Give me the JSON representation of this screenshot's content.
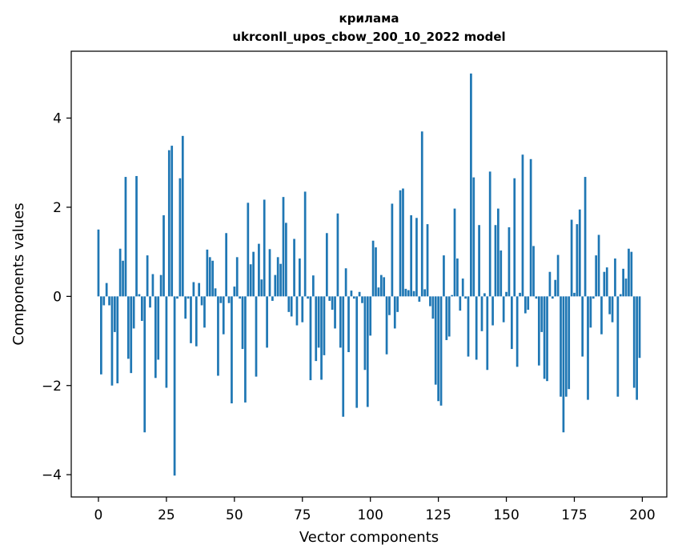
{
  "chart_data": {
    "type": "bar",
    "title": "крилама",
    "subtitle": "ukrconll_upos_cbow_200_10_2022 model",
    "xlabel": "Vector components",
    "ylabel": "Components values",
    "xlim": [
      -10,
      209
    ],
    "ylim": [
      -4.5,
      5.5
    ],
    "xticks": [
      0,
      25,
      50,
      75,
      100,
      125,
      150,
      175,
      200
    ],
    "yticks": [
      -4,
      -2,
      0,
      2,
      4
    ],
    "xtick_labels": [
      "0",
      "25",
      "50",
      "75",
      "100",
      "125",
      "150",
      "175",
      "200"
    ],
    "ytick_labels": [
      "−4",
      "−2",
      "0",
      "2",
      "4"
    ],
    "grid": false,
    "color": "#1f77b4",
    "series": [
      {
        "values": [
          1.5,
          -1.75,
          -0.2,
          0.3,
          -0.2,
          -2.0,
          -0.8,
          -1.95,
          1.07,
          0.8,
          2.68,
          -1.4,
          -1.72,
          -0.72,
          2.7,
          0.05,
          -0.55,
          -3.05,
          0.92,
          -0.25,
          0.5,
          -1.83,
          -1.42,
          0.48,
          1.82,
          -2.05,
          3.28,
          3.38,
          -4.02,
          -0.05,
          2.65,
          3.6,
          -0.5,
          -0.05,
          -1.05,
          0.32,
          -1.12,
          0.3,
          -0.2,
          -0.7,
          1.05,
          0.88,
          0.8,
          0.18,
          -1.78,
          -0.15,
          -0.85,
          1.42,
          -0.15,
          -2.4,
          0.22,
          0.88,
          -0.05,
          -1.18,
          -2.38,
          2.1,
          0.72,
          1.0,
          -1.8,
          1.18,
          0.38,
          2.17,
          -1.15,
          1.06,
          -0.1,
          0.48,
          0.88,
          0.73,
          2.23,
          1.65,
          -0.35,
          -0.45,
          1.29,
          -0.65,
          0.85,
          -0.58,
          2.35,
          -0.05,
          -1.88,
          0.47,
          -1.45,
          -1.15,
          -1.87,
          -1.32,
          1.42,
          -0.1,
          -0.3,
          -0.72,
          1.86,
          -1.15,
          -2.7,
          0.63,
          -1.25,
          0.13,
          -0.05,
          -2.5,
          0.1,
          -0.15,
          -1.65,
          -2.48,
          -0.88,
          1.25,
          1.1,
          0.2,
          0.48,
          0.43,
          -1.3,
          -0.42,
          2.08,
          -0.72,
          -0.35,
          2.38,
          2.42,
          0.17,
          0.14,
          1.82,
          0.12,
          1.76,
          -0.12,
          3.7,
          0.16,
          1.62,
          -0.22,
          -0.5,
          -1.98,
          -2.35,
          -2.45,
          0.92,
          -0.98,
          -0.9,
          0.03,
          1.97,
          0.85,
          -0.32,
          0.4,
          -0.05,
          -1.35,
          5.0,
          2.67,
          -1.42,
          1.6,
          -0.78,
          0.07,
          -1.65,
          2.8,
          -0.65,
          1.6,
          1.97,
          1.03,
          -0.58,
          0.1,
          1.55,
          -1.18,
          2.65,
          -1.58,
          0.08,
          3.18,
          -0.38,
          -0.3,
          3.08,
          1.13,
          -0.05,
          -1.55,
          -0.8,
          -1.85,
          -1.9,
          0.55,
          -0.05,
          0.37,
          0.93,
          -2.25,
          -3.05,
          -2.25,
          -2.08,
          1.72,
          0.08,
          1.62,
          1.95,
          -1.35,
          2.68,
          -2.32,
          -0.7,
          -0.05,
          0.92,
          1.38,
          -0.85,
          0.55,
          0.65,
          -0.4,
          -0.58,
          0.85,
          -2.25,
          0.05,
          0.62,
          0.4,
          1.07,
          1.0,
          -2.05,
          -2.32,
          -1.38
        ]
      }
    ]
  }
}
